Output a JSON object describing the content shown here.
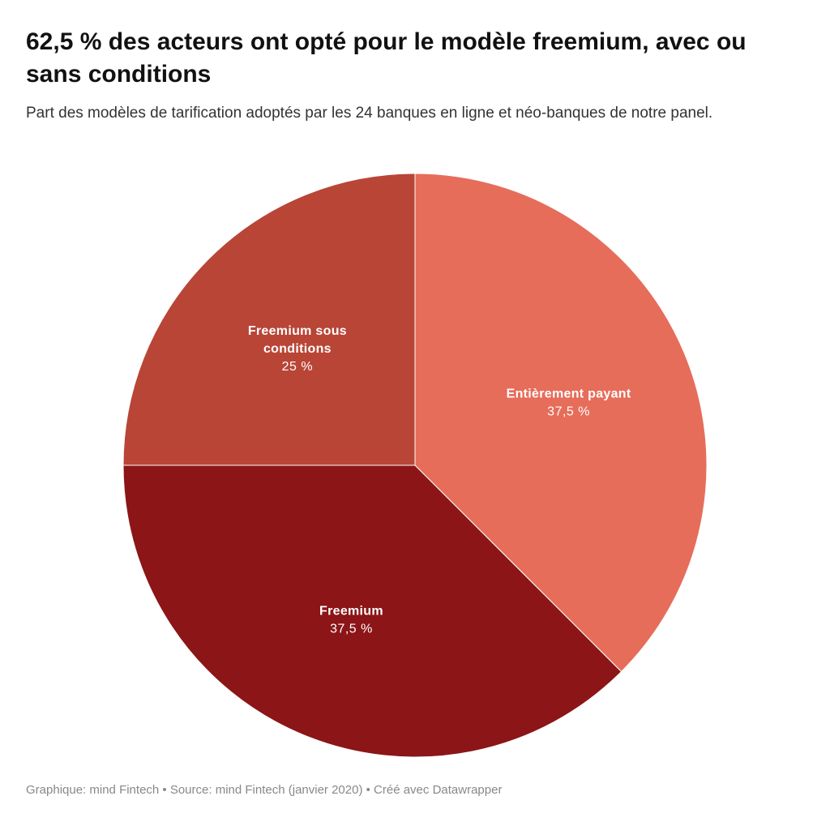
{
  "chart_data": {
    "type": "pie",
    "title": "62,5 % des acteurs ont opté pour le modèle freemium, avec ou sans conditions",
    "subtitle": "Part des modèles de tarification adoptés par les 24 banques en ligne et néo-banques de notre panel.",
    "categories": [
      "Entièrement payant",
      "Freemium",
      "Freemium sous conditions"
    ],
    "values": [
      37.5,
      37.5,
      25
    ],
    "value_labels": [
      "37,5 %",
      "37,5 %",
      "25 %"
    ],
    "label_lines": [
      [
        "Entièrement payant"
      ],
      [
        "Freemium"
      ],
      [
        "Freemium sous",
        "conditions"
      ]
    ],
    "colors": [
      "#e66d5a",
      "#8c1517",
      "#b94536"
    ],
    "start_angle": "12 o'clock, clockwise",
    "legend": "none (labels on slices)"
  },
  "footer": {
    "text": "Graphique: mind Fintech • Source: mind Fintech (janvier 2020) • Créé avec Datawrapper"
  }
}
